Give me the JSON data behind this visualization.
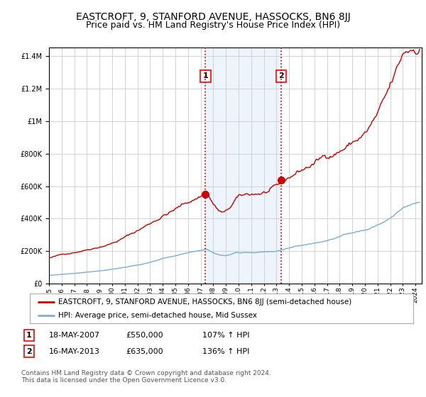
{
  "title": "EASTCROFT, 9, STANFORD AVENUE, HASSOCKS, BN6 8JJ",
  "subtitle": "Price paid vs. HM Land Registry's House Price Index (HPI)",
  "legend_line1": "EASTCROFT, 9, STANFORD AVENUE, HASSOCKS, BN6 8JJ (semi-detached house)",
  "legend_line2": "HPI: Average price, semi-detached house, Mid Sussex",
  "footer": "Contains HM Land Registry data © Crown copyright and database right 2024.\nThis data is licensed under the Open Government Licence v3.0.",
  "transaction1_label": "1",
  "transaction1_date": "18-MAY-2007",
  "transaction1_price": "£550,000",
  "transaction1_hpi": "107% ↑ HPI",
  "transaction1_year": 2007.38,
  "transaction1_value": 550000,
  "transaction2_label": "2",
  "transaction2_date": "16-MAY-2013",
  "transaction2_price": "£635,000",
  "transaction2_hpi": "136% ↑ HPI",
  "transaction2_year": 2013.38,
  "transaction2_value": 635000,
  "ylim": [
    0,
    1450000
  ],
  "xmin": 1995.0,
  "xmax": 2024.5,
  "red_color": "#cc0000",
  "blue_color": "#7aaddb",
  "shading_color": "#cce0f5",
  "grid_color": "#cccccc",
  "bg_color": "#ffffff",
  "title_fontsize": 10,
  "subtitle_fontsize": 9
}
